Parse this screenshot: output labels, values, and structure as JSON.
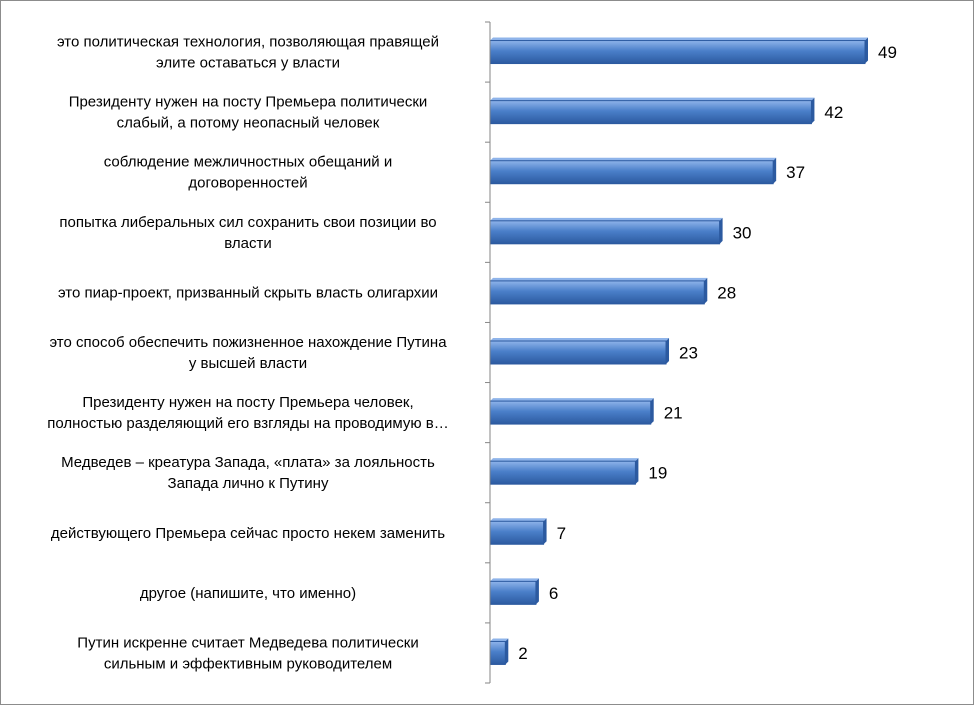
{
  "chart_data": {
    "type": "bar",
    "orientation": "horizontal",
    "categories": [
      "это политическая технология, позволяющая правящей\nэлите оставаться у власти",
      "Президенту нужен на посту Премьера политически\nслабый, а потому неопасный человек",
      "соблюдение межличностных обещаний и\nдоговоренностей",
      "попытка либеральных сил сохранить свои позиции во\nвласти",
      "это пиар-проект, призванный скрыть власть олигархии",
      "это способ обеспечить пожизненное нахождение Путина\nу высшей власти",
      "Президенту нужен на посту Премьера человек,\nполностью разделяющий его взгляды на проводимую в…",
      "Медведев – креатура Запада, «плата» за лояльность\nЗапада лично к Путину",
      "действующего Премьера сейчас просто некем заменить",
      "другое (напишите, что именно)",
      "Путин искренне считает Медведева политически\nсильным и эффективным руководителем"
    ],
    "values": [
      49,
      42,
      37,
      30,
      28,
      23,
      21,
      19,
      7,
      6,
      2
    ],
    "data_labels": [
      "49",
      "42",
      "37",
      "30",
      "28",
      "23",
      "21",
      "19",
      "7",
      "6",
      "2"
    ],
    "xlim": [
      0,
      49
    ],
    "grid": false,
    "legend": "none",
    "colors": {
      "bar_fill": "#4a7fc9",
      "bar_light": "#8fb4ea",
      "bar_dark": "#2c5aa0",
      "axis": "#868686",
      "frame": "#8c8c8c"
    }
  }
}
